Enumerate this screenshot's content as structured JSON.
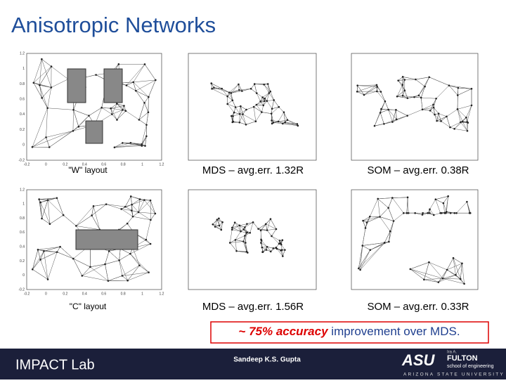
{
  "header": {
    "title": "Anisotropic Networks"
  },
  "panels": [
    {
      "caption": "\"W\" layout",
      "xticks": [
        "-0.2",
        "0",
        "0.2",
        "0.4",
        "0.6",
        "0.8",
        "1",
        "1.2"
      ],
      "yticks": [
        "1.2",
        "1",
        "0.8",
        "0.6",
        "0.4",
        "0.2",
        "0",
        "-0.2"
      ]
    },
    {
      "caption": "MDS – avg.err. 1.32R"
    },
    {
      "caption": "SOM – avg.err. 0.38R"
    },
    {
      "caption": "\"C\" layout",
      "xticks": [
        "-0.2",
        "0",
        "0.2",
        "0.4",
        "0.6",
        "0.8",
        "1",
        "1.2"
      ],
      "yticks": [
        "1.2",
        "1",
        "0.8",
        "0.6",
        "0.4",
        "0.2",
        "0",
        "-0.2"
      ]
    },
    {
      "caption": "MDS – avg.err. 1.56R"
    },
    {
      "caption": "SOM – avg.err. 0.33R"
    }
  ],
  "summary": {
    "highlight": "~ 75% accuracy",
    "rest": " improvement over MDS."
  },
  "footer": {
    "lab": "IMPACT Lab",
    "author": "Sandeep K.S. Gupta",
    "logo": {
      "mark": "ASU",
      "ira": "Ira A.",
      "school": "FULTON",
      "sub": "school of engineering",
      "university": "ARIZONA STATE UNIVERSITY"
    }
  }
}
